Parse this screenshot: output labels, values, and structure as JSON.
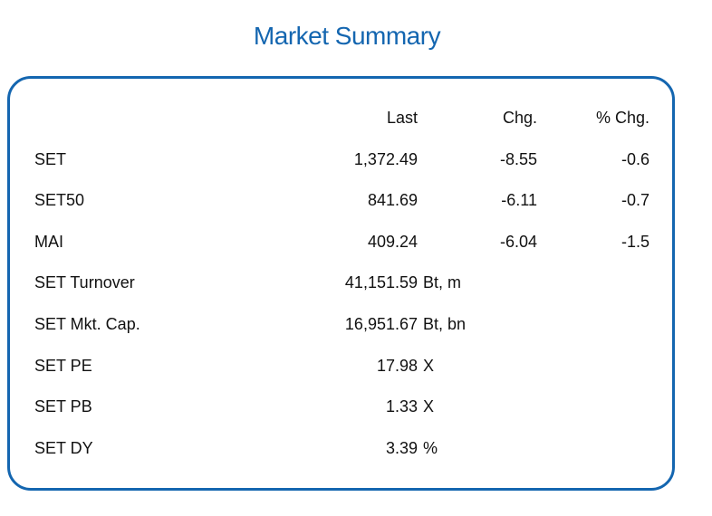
{
  "title": "Market Summary",
  "headers": {
    "last": "Last",
    "chg": "Chg.",
    "pct_chg": "% Chg."
  },
  "indices": [
    {
      "name": "SET",
      "last": "1,372.49",
      "chg": "-8.55",
      "pct_chg": "-0.6"
    },
    {
      "name": "SET50",
      "last": "841.69",
      "chg": "-6.11",
      "pct_chg": "-0.7"
    },
    {
      "name": "MAI",
      "last": "409.24",
      "chg": "-6.04",
      "pct_chg": "-1.5"
    }
  ],
  "stats": [
    {
      "name": "SET  Turnover",
      "value": "41,151.59",
      "unit": "Bt,  m"
    },
    {
      "name": "SET  Mkt.  Cap.",
      "value": "16,951.67",
      "unit": "Bt,  bn"
    },
    {
      "name": "SET  PE",
      "value": "17.98",
      "unit": "X"
    },
    {
      "name": "SET  PB",
      "value": "1.33",
      "unit": "X"
    },
    {
      "name": "SET  DY",
      "value": "3.39",
      "unit": "%"
    }
  ]
}
